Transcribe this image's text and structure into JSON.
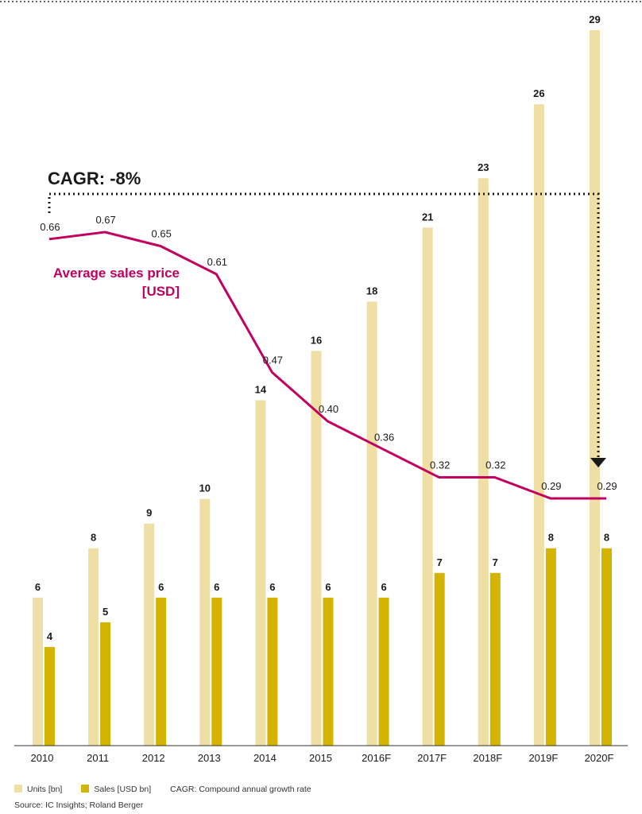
{
  "chart_data": {
    "type": "bar",
    "categories": [
      "2010",
      "2011",
      "2012",
      "2013",
      "2014",
      "2015",
      "2016F",
      "2017F",
      "2018F",
      "2019F",
      "2020F"
    ],
    "series": [
      {
        "name": "Units [bn]",
        "color": "#f0dfa5",
        "values": [
          6,
          8,
          9,
          10,
          14,
          16,
          18,
          21,
          23,
          26,
          29
        ]
      },
      {
        "name": "Sales [USD bn]",
        "color": "#d4b400",
        "values": [
          4,
          5,
          6,
          6,
          6,
          6,
          6,
          7,
          7,
          8,
          8
        ]
      }
    ],
    "line_series": {
      "name": "Average sales price [USD]",
      "label_lines": [
        "Average sales price",
        "[USD]"
      ],
      "color": "#c2005f",
      "values": [
        0.66,
        0.67,
        0.65,
        0.61,
        0.47,
        0.4,
        0.36,
        0.32,
        0.32,
        0.29,
        0.29
      ],
      "value_labels": [
        "0.66",
        "0.67",
        "0.65",
        "0.61",
        "0.47",
        "0.40",
        "0.36",
        "0.32",
        "0.32",
        "0.29",
        "0.29"
      ]
    },
    "bar_ylim": [
      0,
      29
    ],
    "line_ylim": [
      0.29,
      0.67
    ],
    "annotation": "CAGR: -8%",
    "grid": false
  },
  "legend": {
    "units": "Units [bn]",
    "sales": "Sales [USD bn]",
    "note": "CAGR: Compound annual growth rate"
  },
  "source": "Source: IC Insights; Roland Berger"
}
